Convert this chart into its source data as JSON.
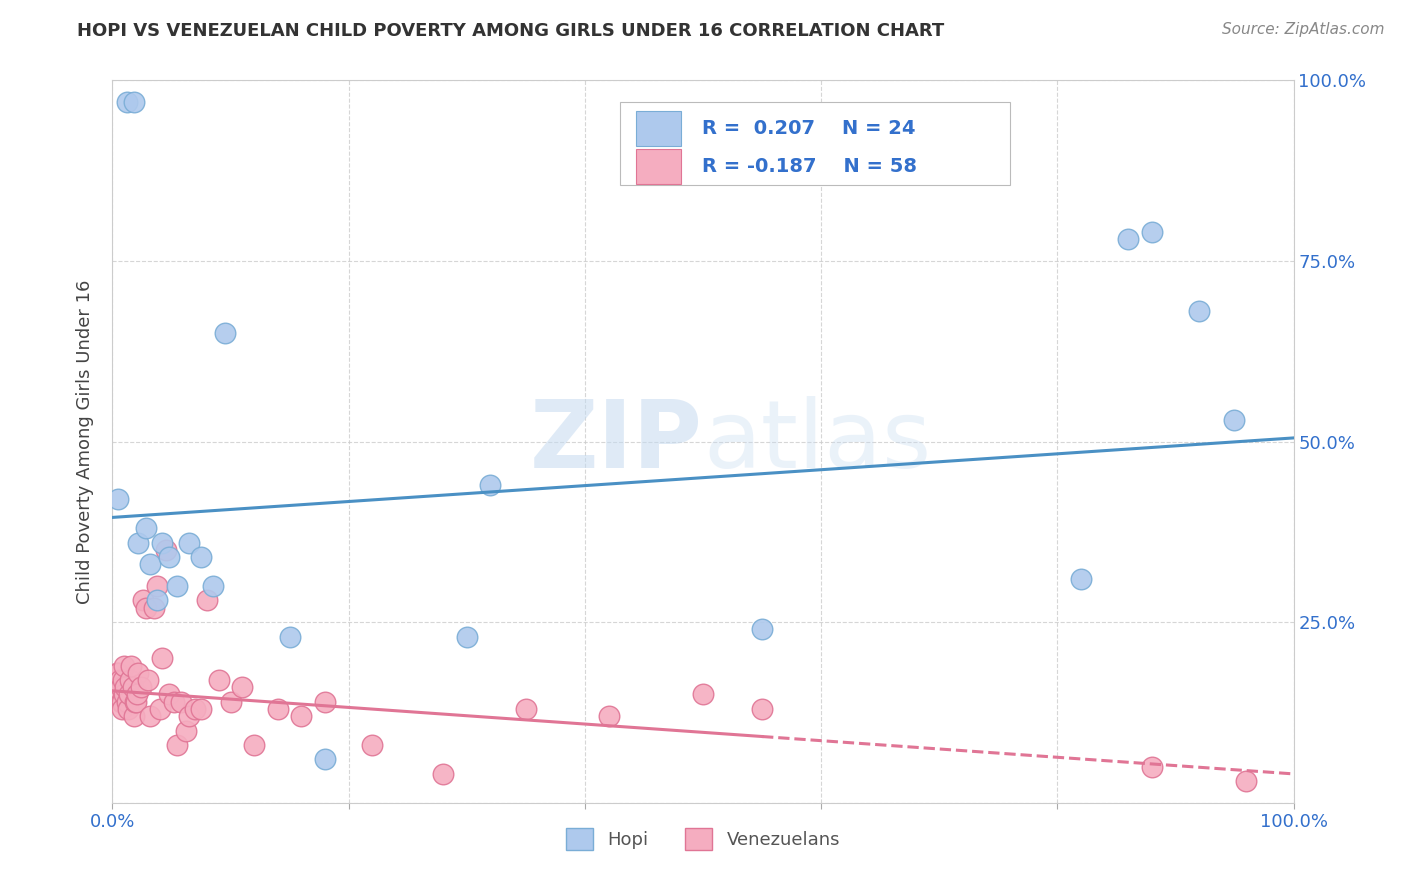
{
  "title": "HOPI VS VENEZUELAN CHILD POVERTY AMONG GIRLS UNDER 16 CORRELATION CHART",
  "source": "Source: ZipAtlas.com",
  "ylabel": "Child Poverty Among Girls Under 16",
  "watermark_zip": "ZIP",
  "watermark_atlas": "atlas",
  "hopi_R": 0.207,
  "hopi_N": 24,
  "venezuelan_R": -0.187,
  "venezuelan_N": 58,
  "hopi_color": "#aec9ed",
  "hopi_edge_color": "#7aadd6",
  "venezuelan_color": "#f5adc0",
  "venezuelan_edge_color": "#e07595",
  "trend_hopi_color": "#4a90c4",
  "trend_venezuelan_color": "#e07595",
  "background_color": "#ffffff",
  "grid_color": "#cccccc",
  "xlim": [
    0.0,
    1.0
  ],
  "ylim": [
    0.0,
    1.0
  ],
  "hopi_x": [
    0.005,
    0.012,
    0.018,
    0.022,
    0.028,
    0.032,
    0.038,
    0.042,
    0.048,
    0.055,
    0.065,
    0.075,
    0.085,
    0.095,
    0.15,
    0.18,
    0.3,
    0.32,
    0.55,
    0.82,
    0.86,
    0.88,
    0.92,
    0.95
  ],
  "hopi_y": [
    0.42,
    0.97,
    0.97,
    0.36,
    0.38,
    0.33,
    0.28,
    0.36,
    0.34,
    0.3,
    0.36,
    0.34,
    0.3,
    0.65,
    0.23,
    0.06,
    0.23,
    0.44,
    0.24,
    0.31,
    0.78,
    0.79,
    0.68,
    0.53
  ],
  "venezuelan_x": [
    0.002,
    0.003,
    0.004,
    0.005,
    0.006,
    0.007,
    0.007,
    0.008,
    0.008,
    0.009,
    0.01,
    0.01,
    0.011,
    0.012,
    0.013,
    0.014,
    0.015,
    0.016,
    0.017,
    0.018,
    0.019,
    0.02,
    0.021,
    0.022,
    0.024,
    0.026,
    0.028,
    0.03,
    0.032,
    0.035,
    0.038,
    0.04,
    0.042,
    0.045,
    0.048,
    0.052,
    0.055,
    0.058,
    0.062,
    0.065,
    0.07,
    0.075,
    0.08,
    0.09,
    0.1,
    0.11,
    0.12,
    0.14,
    0.16,
    0.18,
    0.22,
    0.28,
    0.35,
    0.42,
    0.5,
    0.55,
    0.88,
    0.96
  ],
  "venezuelan_y": [
    0.16,
    0.15,
    0.18,
    0.18,
    0.17,
    0.14,
    0.16,
    0.14,
    0.13,
    0.17,
    0.15,
    0.19,
    0.16,
    0.14,
    0.13,
    0.15,
    0.17,
    0.19,
    0.16,
    0.12,
    0.14,
    0.14,
    0.15,
    0.18,
    0.16,
    0.28,
    0.27,
    0.17,
    0.12,
    0.27,
    0.3,
    0.13,
    0.2,
    0.35,
    0.15,
    0.14,
    0.08,
    0.14,
    0.1,
    0.12,
    0.13,
    0.13,
    0.28,
    0.17,
    0.14,
    0.16,
    0.08,
    0.13,
    0.12,
    0.14,
    0.08,
    0.04,
    0.13,
    0.12,
    0.15,
    0.13,
    0.05,
    0.03
  ],
  "trend_hopi_x0": 0.0,
  "trend_hopi_y0": 0.395,
  "trend_hopi_x1": 1.0,
  "trend_hopi_y1": 0.505,
  "trend_ven_x0": 0.0,
  "trend_ven_y0": 0.155,
  "trend_ven_x1": 1.0,
  "trend_ven_y1": 0.04,
  "trend_ven_solid_end": 0.55,
  "x_tick_labels": [
    "0.0%",
    "",
    "",
    "",
    "",
    "100.0%"
  ],
  "x_ticks": [
    0.0,
    0.2,
    0.4,
    0.6,
    0.8,
    1.0
  ],
  "y_ticks": [
    0.0,
    0.25,
    0.5,
    0.75,
    1.0
  ],
  "y_tick_labels_right": [
    "",
    "25.0%",
    "50.0%",
    "75.0%",
    "100.0%"
  ],
  "legend_label_hopi": "R =  0.207    N = 24",
  "legend_label_ven": "R = -0.187    N = 58",
  "bottom_legend_hopi": "Hopi",
  "bottom_legend_ven": "Venezuelans",
  "title_fontsize": 13,
  "axis_tick_fontsize": 13,
  "legend_fontsize": 14,
  "ylabel_fontsize": 13
}
